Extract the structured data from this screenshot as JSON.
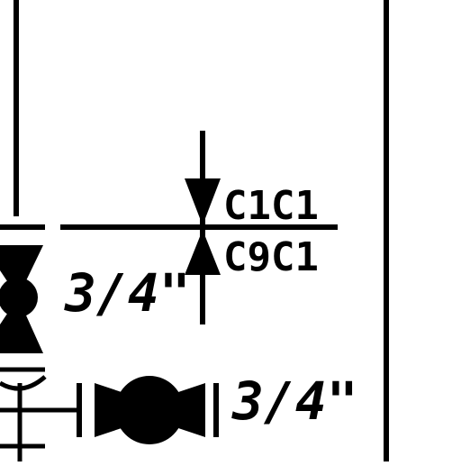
{
  "drawing": {
    "line_color": "#000000",
    "background": "#ffffff",
    "labels": {
      "valve_top_tag": "C1C1",
      "valve_bottom_tag": "C9C1",
      "left_valve_size": "3/4\"",
      "bottom_valve_size": "3/4\""
    },
    "symbols": [
      "check-valve-icon",
      "globe-valve-icon",
      "ball-valve-icon"
    ]
  }
}
